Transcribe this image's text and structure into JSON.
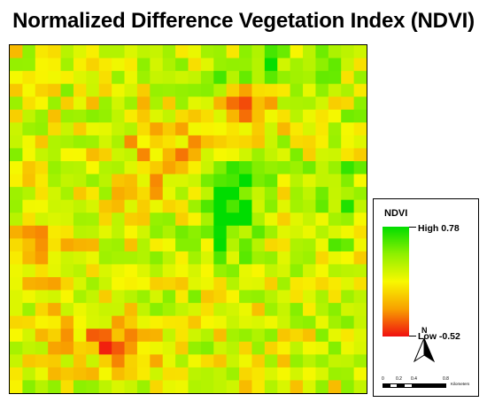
{
  "title": "Normalized Difference Vegetation Index (NDVI)",
  "legend": {
    "title": "NDVI",
    "high_label": "High 0.78",
    "low_label": "Low -0.52",
    "high_value": 0.78,
    "low_value": -0.52,
    "ramp_colors": [
      "#00dd00",
      "#8ff000",
      "#f8f800",
      "#f8a000",
      "#f01010"
    ]
  },
  "north_arrow": {
    "label": "N",
    "icon": "north-arrow-icon"
  },
  "scale_bar": {
    "ticks": [
      "0",
      "0.2",
      "0.4",
      "0.8"
    ],
    "units": "Kilometers"
  }
}
